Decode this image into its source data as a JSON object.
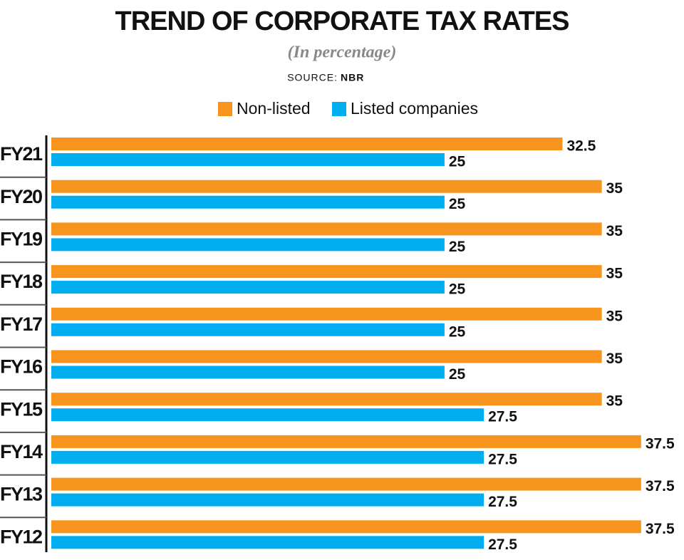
{
  "chart_data": {
    "type": "bar",
    "orientation": "horizontal",
    "title": "TREND OF CORPORATE TAX RATES",
    "subtitle": "(In percentage)",
    "source_label": "SOURCE:",
    "source": "NBR",
    "categories": [
      "FY21",
      "FY20",
      "FY19",
      "FY18",
      "FY17",
      "FY16",
      "FY15",
      "FY14",
      "FY13",
      "FY12"
    ],
    "series": [
      {
        "name": "Non-listed",
        "color": "#f7941d",
        "values": [
          32.5,
          35,
          35,
          35,
          35,
          35,
          35,
          37.5,
          37.5,
          37.5
        ]
      },
      {
        "name": "Listed companies",
        "color": "#00aeef",
        "values": [
          25,
          25,
          25,
          25,
          25,
          25,
          27.5,
          27.5,
          27.5,
          27.5
        ]
      }
    ],
    "xlim": [
      0,
      40
    ]
  }
}
